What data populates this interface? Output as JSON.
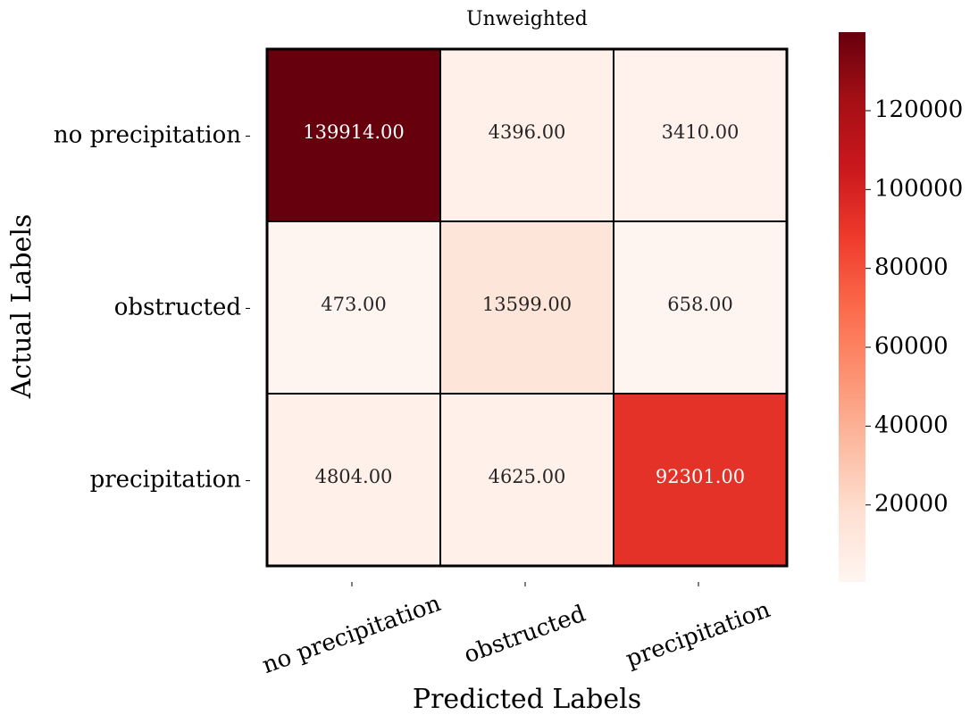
{
  "chart_data": {
    "type": "heatmap",
    "title": "Unweighted",
    "xlabel": "Predicted Labels",
    "ylabel": "Actual Labels",
    "x_categories": [
      "no precipitation",
      "obstructed",
      "precipitation"
    ],
    "y_categories": [
      "no precipitation",
      "obstructed",
      "precipitation"
    ],
    "values": [
      [
        139914,
        4396,
        3410
      ],
      [
        473,
        13599,
        658
      ],
      [
        4804,
        4625,
        92301
      ]
    ],
    "cell_labels": [
      [
        "139914.00",
        "4396.00",
        "3410.00"
      ],
      [
        "473.00",
        "13599.00",
        "658.00"
      ],
      [
        "4804.00",
        "4625.00",
        "92301.00"
      ]
    ],
    "colormap": "Reds",
    "colorbar": {
      "vmin": 473,
      "vmax": 139914,
      "ticks": [
        20000,
        40000,
        60000,
        80000,
        100000,
        120000
      ],
      "tick_labels": [
        "20000",
        "40000",
        "60000",
        "80000",
        "100000",
        "120000"
      ]
    }
  }
}
